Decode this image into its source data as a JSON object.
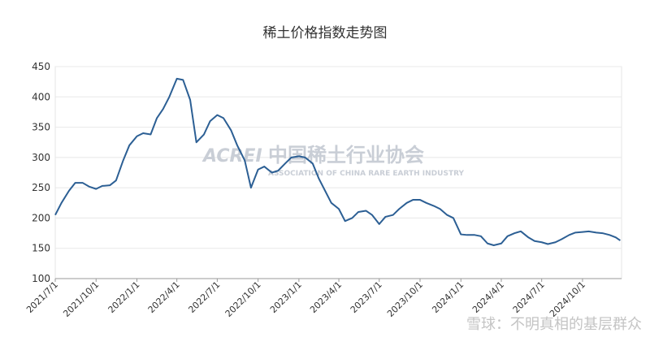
{
  "chart_data": {
    "type": "line",
    "title": "稀土价格指数走势图",
    "watermark": [
      "ACREI",
      "中国稀土行业协会",
      "ASSOCIATION OF CHINA RARE EARTH INDUSTRY"
    ],
    "credit": "雪球：不明真相的基层群众",
    "x": [
      "2021/7/1",
      "2021/7/15",
      "2021/8/1",
      "2021/8/15",
      "2021/9/1",
      "2021/9/15",
      "2021/10/1",
      "2021/10/15",
      "2021/11/1",
      "2021/11/15",
      "2021/12/1",
      "2021/12/15",
      "2022/1/1",
      "2022/1/15",
      "2022/2/1",
      "2022/2/15",
      "2022/3/1",
      "2022/3/15",
      "2022/4/1",
      "2022/4/15",
      "2022/5/1",
      "2022/5/15",
      "2022/6/1",
      "2022/6/15",
      "2022/7/1",
      "2022/7/15",
      "2022/8/1",
      "2022/8/15",
      "2022/9/1",
      "2022/9/15",
      "2022/10/1",
      "2022/10/15",
      "2022/11/1",
      "2022/11/15",
      "2022/12/1",
      "2022/12/15",
      "2023/1/1",
      "2023/1/15",
      "2023/2/1",
      "2023/2/15",
      "2023/3/1",
      "2023/3/15",
      "2023/4/1",
      "2023/4/15",
      "2023/5/1",
      "2023/5/15",
      "2023/6/1",
      "2023/6/15",
      "2023/7/1",
      "2023/7/15",
      "2023/8/1",
      "2023/8/15",
      "2023/9/1",
      "2023/9/15",
      "2023/10/1",
      "2023/10/15",
      "2023/11/1",
      "2023/11/15",
      "2023/12/1",
      "2023/12/15",
      "2024/1/1",
      "2024/1/15",
      "2024/2/1",
      "2024/2/15",
      "2024/3/1",
      "2024/3/15",
      "2024/4/1",
      "2024/4/15",
      "2024/5/1",
      "2024/5/15",
      "2024/6/1",
      "2024/6/15",
      "2024/7/1",
      "2024/7/15",
      "2024/8/1",
      "2024/8/15",
      "2024/9/1",
      "2024/9/15",
      "2024/10/1",
      "2024/10/15",
      "2024/11/1",
      "2024/11/15",
      "2024/12/1",
      "2024/12/15",
      "2024/12/25"
    ],
    "series": [
      {
        "name": "稀土价格指数",
        "color": "#2c5f94",
        "values": [
          205,
          225,
          245,
          258,
          258,
          252,
          248,
          253,
          254,
          262,
          295,
          320,
          335,
          340,
          338,
          365,
          380,
          400,
          430,
          428,
          395,
          325,
          338,
          360,
          370,
          365,
          345,
          320,
          295,
          250,
          280,
          285,
          275,
          278,
          290,
          300,
          302,
          300,
          290,
          265,
          245,
          225,
          215,
          195,
          200,
          210,
          212,
          205,
          190,
          202,
          205,
          215,
          225,
          230,
          230,
          225,
          220,
          215,
          205,
          200,
          173,
          172,
          172,
          170,
          158,
          155,
          158,
          170,
          175,
          178,
          168,
          162,
          160,
          157,
          160,
          165,
          172,
          176,
          177,
          178,
          176,
          175,
          172,
          168,
          163
        ]
      }
    ],
    "xlim": [
      "2021/7/1",
      "2024/12/28"
    ],
    "xticks": [
      "2021/7/1",
      "2021/10/1",
      "2022/1/1",
      "2022/4/1",
      "2022/7/1",
      "2022/10/1",
      "2023/1/1",
      "2023/4/1",
      "2023/7/1",
      "2023/10/1",
      "2024/1/1",
      "2024/4/1",
      "2024/7/1",
      "2024/10/1"
    ],
    "ylim": [
      100,
      450
    ],
    "yticks": [
      100,
      150,
      200,
      250,
      300,
      350,
      400,
      450
    ],
    "grid": true
  }
}
